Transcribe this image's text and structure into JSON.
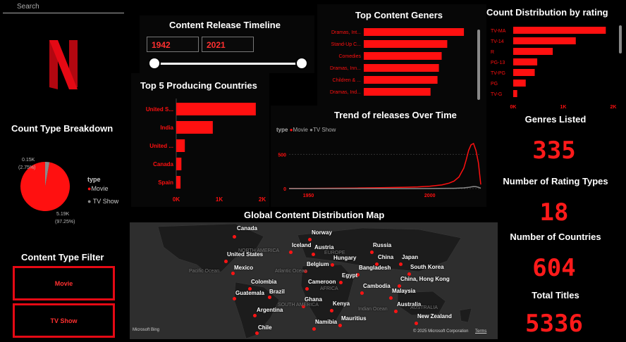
{
  "search": {
    "placeholder": "Search"
  },
  "logo": {
    "letter": "N"
  },
  "timeline": {
    "title": "Content Release Timeline",
    "start": "1942",
    "end": "2021"
  },
  "genres_chart": {
    "title": "Top Content Geners"
  },
  "rating_chart": {
    "title": "Count Distribution by rating"
  },
  "countries_chart": {
    "title": "Top 5 Producing Countries"
  },
  "trend_chart": {
    "title": "Trend of releases Over Time",
    "legend_label": "type",
    "movie": "Movie",
    "tvshow": "TV Show"
  },
  "pie_chart": {
    "title": "Count Type Breakdown",
    "legend_title": "type",
    "movie_label": "Movie",
    "tv_label": "TV Show",
    "tv_value": "0.15K",
    "tv_pct": "(2.75%)",
    "movie_value": "5.19K",
    "movie_pct": "(97.25%)"
  },
  "filter": {
    "title": "Content Type Filter",
    "movie": "Movie",
    "tv": "TV Show"
  },
  "map": {
    "title": "Global Content Distribution Map",
    "bing": "Microsoft Bing",
    "copyright": "© 2025 Microsoft Corporation",
    "terms": "Terms",
    "labels": [
      "Canada",
      "United States",
      "Mexico",
      "Colombia",
      "Guatemala",
      "Brazil",
      "Argentina",
      "Chile",
      "Norway",
      "Iceland",
      "Austria",
      "Belgium",
      "Hungary",
      "Russia",
      "China",
      "Japan",
      "Bangladesh",
      "South Korea",
      "Egypt",
      "Cameroon",
      "Cambodia",
      "China, Hong Kong",
      "Malaysia",
      "Ghana",
      "Kenya",
      "Australia",
      "Namibia",
      "Mauritius",
      "New Zealand"
    ],
    "faint_labels": [
      "NORTH AMERICA",
      "Pacific Ocean",
      "Atlantic Ocean",
      "EUROPE",
      "AFRICA",
      "SOUTH AMERICA",
      "Indian Ocean",
      "AUSTRALIA"
    ]
  },
  "kpis": [
    {
      "title": "Genres Listed",
      "value": "335"
    },
    {
      "title": "Number of Rating Types",
      "value": "18"
    },
    {
      "title": "Number of Countries",
      "value": "604"
    },
    {
      "title": "Total Titles",
      "value": "5336"
    }
  ],
  "colors": {
    "accent": "#e50914",
    "bar": "#ff1010",
    "tv": "#8a8a8a"
  },
  "chart_data": [
    {
      "type": "bar",
      "title": "Top Content Geners",
      "categories": [
        "Dramas, Int...",
        "Stand-Up C...",
        "Comedies",
        "Dramas, Inn...",
        "Children & ...",
        "Dramas, Ind..."
      ],
      "values": [
        360,
        300,
        280,
        270,
        265,
        240
      ]
    },
    {
      "type": "bar",
      "title": "Count Distribution by rating",
      "categories": [
        "TV-MA",
        "TV-14",
        "R",
        "PG-13",
        "TV-PG",
        "PG",
        "TV-G"
      ],
      "values": [
        1850,
        1250,
        790,
        480,
        430,
        250,
        80
      ],
      "xticks": [
        "0K",
        "1K",
        "2K"
      ]
    },
    {
      "type": "bar",
      "title": "Top 5 Producing Countries",
      "categories": [
        "United S...",
        "India",
        "United ...",
        "Canada",
        "Spain"
      ],
      "values": [
        1850,
        850,
        200,
        120,
        100
      ],
      "xticks": [
        "0K",
        "1K",
        "2K"
      ]
    },
    {
      "type": "line",
      "title": "Trend of releases Over Time",
      "series": [
        {
          "name": "Movie",
          "x": [
            1942,
            1950,
            1960,
            1970,
            1980,
            1990,
            1995,
            2000,
            2005,
            2008,
            2010,
            2012,
            2014,
            2015,
            2016,
            2017,
            2018,
            2019,
            2020,
            2021
          ],
          "y": [
            2,
            3,
            5,
            8,
            12,
            20,
            25,
            35,
            55,
            80,
            110,
            170,
            300,
            420,
            560,
            640,
            660,
            560,
            380,
            60
          ]
        },
        {
          "name": "TV Show",
          "x": [
            1942,
            1990,
            2000,
            2010,
            2014,
            2016,
            2017,
            2018,
            2019,
            2020,
            2021
          ],
          "y": [
            0,
            0,
            1,
            4,
            10,
            18,
            25,
            30,
            28,
            20,
            5
          ]
        }
      ],
      "xticks": [
        "1950",
        "2000"
      ],
      "yticks": [
        "0",
        "500"
      ]
    },
    {
      "type": "pie",
      "title": "Count Type Breakdown",
      "categories": [
        "Movie",
        "TV Show"
      ],
      "values": [
        5190,
        150
      ]
    }
  ]
}
